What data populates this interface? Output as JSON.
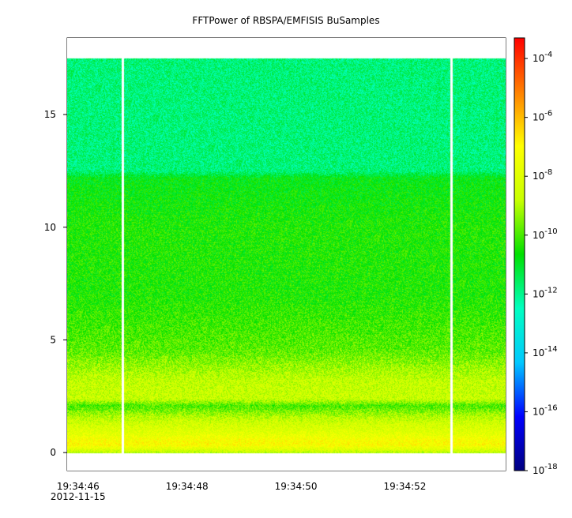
{
  "chart_data": {
    "type": "heatmap",
    "title": "FFTPower of RBSPA/EMFISIS  BuSamples",
    "xlabel": "",
    "ylabel": "",
    "x_ticks": [
      {
        "t": 0,
        "label": "19:34:46",
        "sublabel": "2012-11-15"
      },
      {
        "t": 2,
        "label": "19:34:48"
      },
      {
        "t": 4,
        "label": "19:34:50"
      },
      {
        "t": 6,
        "label": "19:34:52"
      }
    ],
    "x_minor_ticks": [
      1,
      3,
      5,
      7
    ],
    "xlim": [
      -0.2,
      7.85
    ],
    "ylim": [
      -0.8,
      18.4
    ],
    "y_ticks": [
      0,
      5,
      10,
      15
    ],
    "data_extent": {
      "t": [
        -0.2,
        7.85
      ],
      "y": [
        0,
        17.5
      ]
    },
    "gaps_t": [
      0.81,
      6.85
    ],
    "spectral_profile": [
      {
        "y": 0.0,
        "log10_power": -8.9
      },
      {
        "y": 0.35,
        "log10_power": -7.1
      },
      {
        "y": 0.6,
        "log10_power": -7.3
      },
      {
        "y": 0.9,
        "log10_power": -8.0
      },
      {
        "y": 1.3,
        "log10_power": -8.4
      },
      {
        "y": 1.6,
        "log10_power": -8.9
      },
      {
        "y": 1.9,
        "log10_power": -9.6
      },
      {
        "y": 2.1,
        "log10_power": -10.0
      },
      {
        "y": 2.4,
        "log10_power": -8.6
      },
      {
        "y": 3.2,
        "log10_power": -8.7
      },
      {
        "y": 4.5,
        "log10_power": -9.8
      },
      {
        "y": 7.0,
        "log10_power": -10.4
      },
      {
        "y": 10.0,
        "log10_power": -10.4
      },
      {
        "y": 12.2,
        "log10_power": -10.8
      },
      {
        "y": 12.5,
        "log10_power": -11.8
      },
      {
        "y": 17.5,
        "log10_power": -11.8
      }
    ],
    "colorbar": {
      "scale": "log",
      "range_log10": [
        -18,
        -3.3
      ],
      "ticks": [
        {
          "exp": -4,
          "base": "10",
          "sup": "-4"
        },
        {
          "exp": -6,
          "base": "10",
          "sup": "-6"
        },
        {
          "exp": -8,
          "base": "10",
          "sup": "-8"
        },
        {
          "exp": -10,
          "base": "10",
          "sup": "-10"
        },
        {
          "exp": -12,
          "base": "10",
          "sup": "-12"
        },
        {
          "exp": -14,
          "base": "10",
          "sup": "-14"
        },
        {
          "exp": -16,
          "base": "10",
          "sup": "-16"
        },
        {
          "exp": -18,
          "base": "10",
          "sup": "-18"
        }
      ],
      "colors": [
        "#000080",
        "#0000ff",
        "#00c8ff",
        "#00ffc0",
        "#00e000",
        "#c8ff00",
        "#ffff00",
        "#ff8000",
        "#ff0000"
      ]
    }
  }
}
